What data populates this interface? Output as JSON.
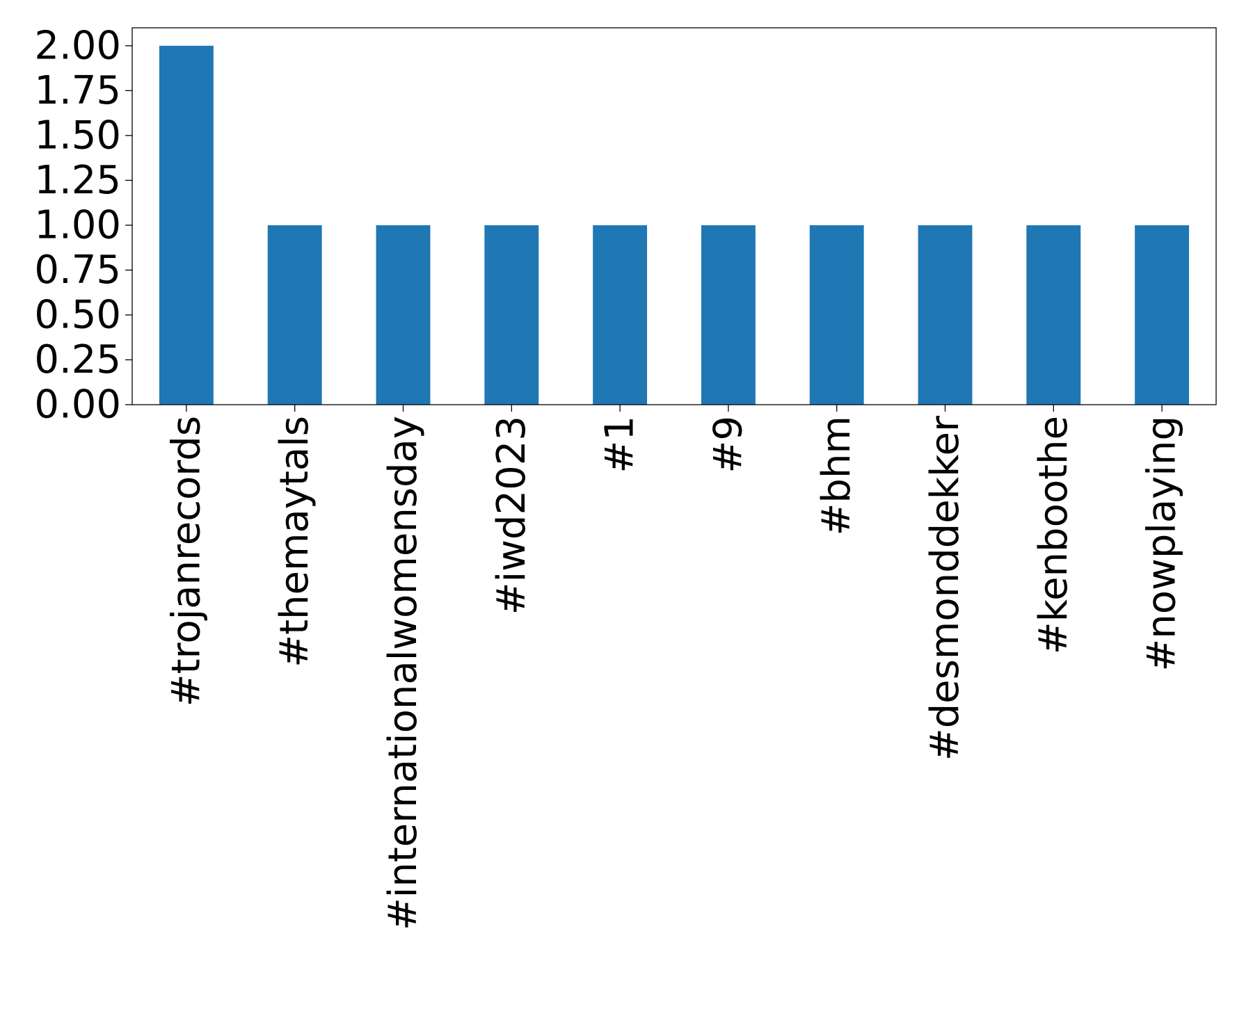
{
  "chart_data": {
    "type": "bar",
    "title": "",
    "xlabel": "",
    "ylabel": "",
    "categories": [
      "#trojanrecords",
      "#themaytals",
      "#internationalwomensday",
      "#iwd2023",
      "#1",
      "#9",
      "#bhm",
      "#desmonddekker",
      "#kenboothe",
      "#nowplaying"
    ],
    "values": [
      2,
      1,
      1,
      1,
      1,
      1,
      1,
      1,
      1,
      1
    ],
    "ylim": [
      0,
      2.1
    ],
    "yticks": [
      0.0,
      0.25,
      0.5,
      0.75,
      1.0,
      1.25,
      1.5,
      1.75,
      2.0
    ],
    "ytick_labels": [
      "0.00",
      "0.25",
      "0.50",
      "0.75",
      "1.00",
      "1.25",
      "1.50",
      "1.75",
      "2.00"
    ],
    "grid": false,
    "legend": "none",
    "colors": {
      "bar": "#1f77b4",
      "axis": "#000000"
    }
  }
}
